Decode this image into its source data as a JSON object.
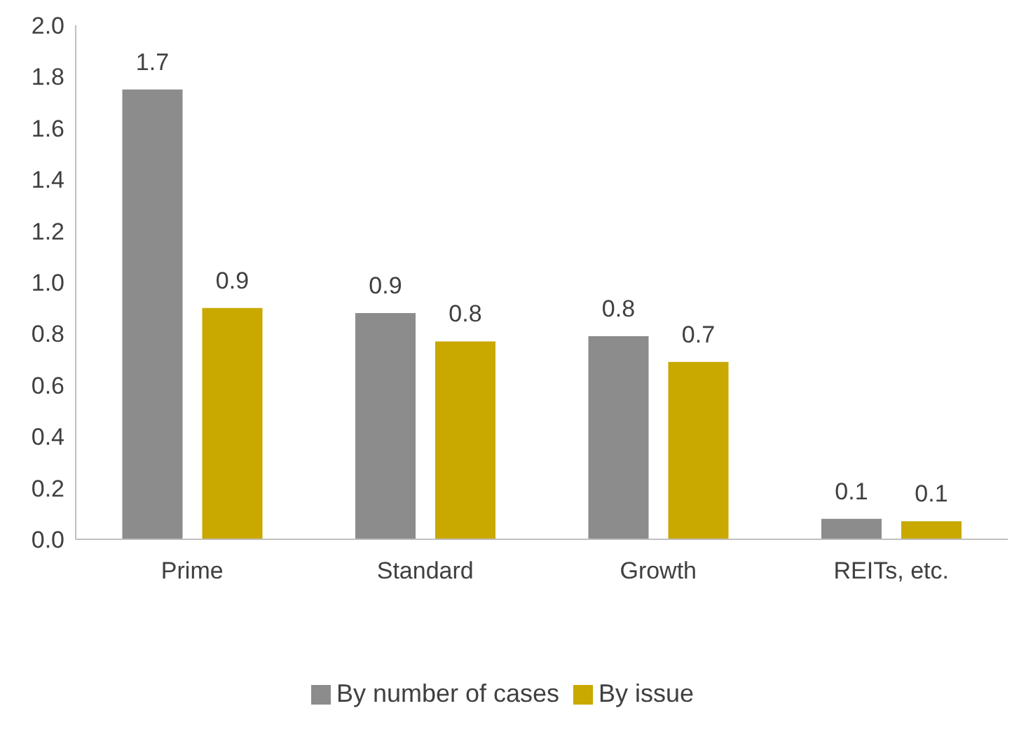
{
  "chart_data": {
    "type": "bar",
    "categories": [
      "Prime",
      "Standard",
      "Growth",
      "REITs, etc."
    ],
    "series": [
      {
        "name": "By number of cases",
        "color": "#8c8c8c",
        "values": [
          1.75,
          0.88,
          0.79,
          0.08
        ],
        "value_labels": [
          "1.7",
          "0.9",
          "0.8",
          "0.1"
        ]
      },
      {
        "name": "By issue",
        "color": "#c9a800",
        "values": [
          0.9,
          0.77,
          0.69,
          0.07
        ],
        "value_labels": [
          "0.9",
          "0.8",
          "0.7",
          "0.1"
        ]
      }
    ],
    "ylim": [
      0,
      2
    ],
    "yticks": [
      {
        "value": 0,
        "label": "0.0"
      },
      {
        "value": 0.2,
        "label": "0.2"
      },
      {
        "value": 0.4,
        "label": "0.4"
      },
      {
        "value": 0.6,
        "label": "0.6"
      },
      {
        "value": 0.8,
        "label": "0.8"
      },
      {
        "value": 1,
        "label": "1.0"
      },
      {
        "value": 1.2,
        "label": "1.2"
      },
      {
        "value": 1.4,
        "label": "1.4"
      },
      {
        "value": 1.6,
        "label": "1.6"
      },
      {
        "value": 1.8,
        "label": "1.8"
      },
      {
        "value": 2,
        "label": "2.0"
      }
    ],
    "grid": false,
    "legend": "bottom"
  }
}
